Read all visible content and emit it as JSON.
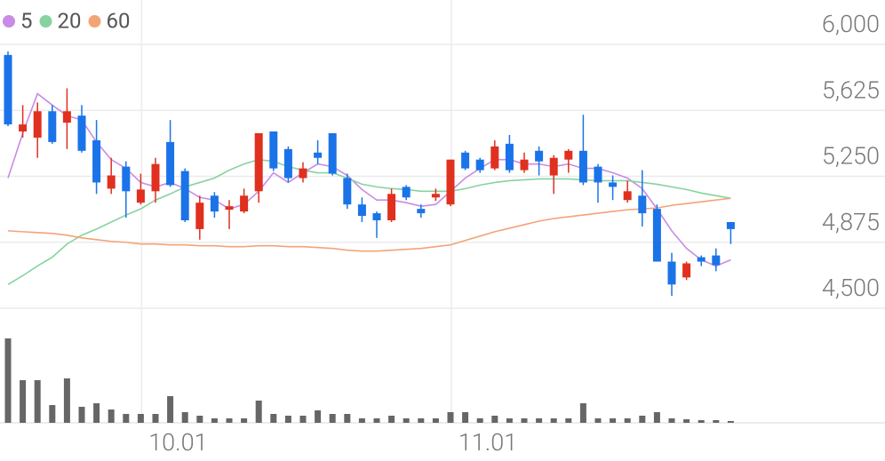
{
  "chart_data": {
    "type": "candlestick",
    "categories": [
      null,
      null,
      null,
      null,
      null,
      null,
      null,
      null,
      null,
      "10.01",
      null,
      null,
      null,
      null,
      null,
      null,
      null,
      null,
      null,
      null,
      null,
      null,
      null,
      null,
      null,
      null,
      null,
      null,
      null,
      null,
      "11.01",
      null,
      null,
      null,
      null,
      null,
      null,
      null,
      null,
      null,
      null,
      null,
      null,
      null,
      null,
      null,
      null,
      null,
      null,
      null
    ],
    "open": [
      5940,
      5505,
      5470,
      5620,
      5555,
      5595,
      5455,
      5180,
      5305,
      5100,
      5165,
      5445,
      5280,
      4950,
      5140,
      5060,
      5050,
      5165,
      5505,
      5405,
      5240,
      5385,
      5495,
      5240,
      5090,
      5040,
      5000,
      5190,
      5065,
      5130,
      5090,
      5385,
      5345,
      5295,
      5435,
      5285,
      5395,
      5255,
      5345,
      5395,
      5305,
      5215,
      5115,
      5140,
      5065,
      4765,
      4675,
      4790,
      4800,
      4990
    ],
    "high": [
      5960,
      5655,
      5670,
      5655,
      5750,
      5655,
      5570,
      5355,
      5335,
      5265,
      5355,
      5570,
      5295,
      5140,
      5160,
      5115,
      5180,
      5495,
      5505,
      5420,
      5330,
      5455,
      5495,
      5265,
      5130,
      5050,
      5180,
      5200,
      5090,
      5180,
      5345,
      5395,
      5355,
      5455,
      5485,
      5385,
      5420,
      5370,
      5405,
      5600,
      5320,
      5255,
      5225,
      5285,
      5090,
      4815,
      4765,
      4800,
      4840,
      4990
    ],
    "low": [
      5535,
      5470,
      5355,
      5435,
      5405,
      5385,
      5150,
      5150,
      5015,
      5090,
      5100,
      5190,
      4990,
      4890,
      5015,
      4950,
      5040,
      5100,
      5280,
      5215,
      5215,
      5320,
      5255,
      5065,
      4990,
      4900,
      4990,
      5115,
      5015,
      5110,
      5080,
      5285,
      5270,
      5285,
      5270,
      5270,
      5255,
      5150,
      5270,
      5200,
      5100,
      5115,
      5100,
      4965,
      4765,
      4570,
      4660,
      4740,
      4710,
      4865
    ],
    "close": [
      5545,
      5545,
      5620,
      5445,
      5620,
      5395,
      5215,
      5255,
      5165,
      5175,
      5320,
      5200,
      5000,
      5100,
      5050,
      5080,
      5140,
      5495,
      5295,
      5240,
      5295,
      5355,
      5265,
      5090,
      5025,
      5000,
      5150,
      5130,
      5040,
      5150,
      5345,
      5295,
      5285,
      5420,
      5285,
      5345,
      5335,
      5355,
      5395,
      5215,
      5215,
      5190,
      5165,
      5040,
      4765,
      4635,
      4755,
      4765,
      4745,
      4950
    ],
    "volume": [
      95,
      48,
      48,
      20,
      50,
      18,
      22,
      15,
      10,
      10,
      10,
      30,
      12,
      8,
      5,
      5,
      5,
      25,
      10,
      8,
      8,
      14,
      10,
      10,
      5,
      5,
      8,
      5,
      5,
      5,
      12,
      12,
      5,
      8,
      5,
      5,
      5,
      5,
      5,
      22,
      5,
      5,
      5,
      8,
      12,
      5,
      4,
      3,
      3,
      2
    ],
    "up_color": "#e0301e",
    "down_color": "#1a73e8",
    "series": [
      {
        "name": "5",
        "color": "#c98be6",
        "values": [
          5240,
          5495,
          5720,
          5655,
          5595,
          5570,
          5445,
          5345,
          5295,
          5215,
          5190,
          5215,
          5180,
          5130,
          5115,
          5065,
          5090,
          5165,
          5270,
          5215,
          5270,
          5320,
          5305,
          5255,
          5175,
          5115,
          5115,
          5100,
          5080,
          5090,
          5165,
          5240,
          5295,
          5345,
          5345,
          5320,
          5320,
          5305,
          5320,
          5295,
          5295,
          5270,
          5240,
          5180,
          5065,
          4940,
          4840,
          4775,
          4740,
          4775
        ]
      },
      {
        "name": "20",
        "color": "#86d39f",
        "values": [
          4635,
          4685,
          4740,
          4790,
          4865,
          4915,
          4950,
          4990,
          5030,
          5065,
          5115,
          5150,
          5190,
          5215,
          5240,
          5285,
          5320,
          5345,
          5335,
          5305,
          5285,
          5270,
          5270,
          5240,
          5205,
          5190,
          5180,
          5175,
          5165,
          5165,
          5165,
          5180,
          5200,
          5215,
          5225,
          5230,
          5235,
          5235,
          5235,
          5230,
          5225,
          5225,
          5225,
          5215,
          5205,
          5190,
          5175,
          5155,
          5140,
          5125
        ]
      },
      {
        "name": "60",
        "color": "#f2a477",
        "values": [
          4940,
          4935,
          4930,
          4925,
          4915,
          4900,
          4890,
          4880,
          4875,
          4865,
          4865,
          4860,
          4860,
          4855,
          4855,
          4850,
          4850,
          4855,
          4855,
          4850,
          4850,
          4845,
          4840,
          4830,
          4825,
          4825,
          4830,
          4835,
          4840,
          4850,
          4860,
          4885,
          4910,
          4935,
          4955,
          4975,
          4995,
          5010,
          5020,
          5030,
          5040,
          5050,
          5060,
          5065,
          5070,
          5085,
          5095,
          5105,
          5115,
          5125
        ]
      }
    ],
    "ylim": [
      4500,
      6000
    ],
    "yticks": [
      {
        "value": 4500,
        "label": "4,500"
      },
      {
        "value": 4875,
        "label": "4,875"
      },
      {
        "value": 5250,
        "label": "5,250"
      },
      {
        "value": 5625,
        "label": "5,625"
      },
      {
        "value": 6000,
        "label": "6,000"
      }
    ],
    "grid": true
  }
}
